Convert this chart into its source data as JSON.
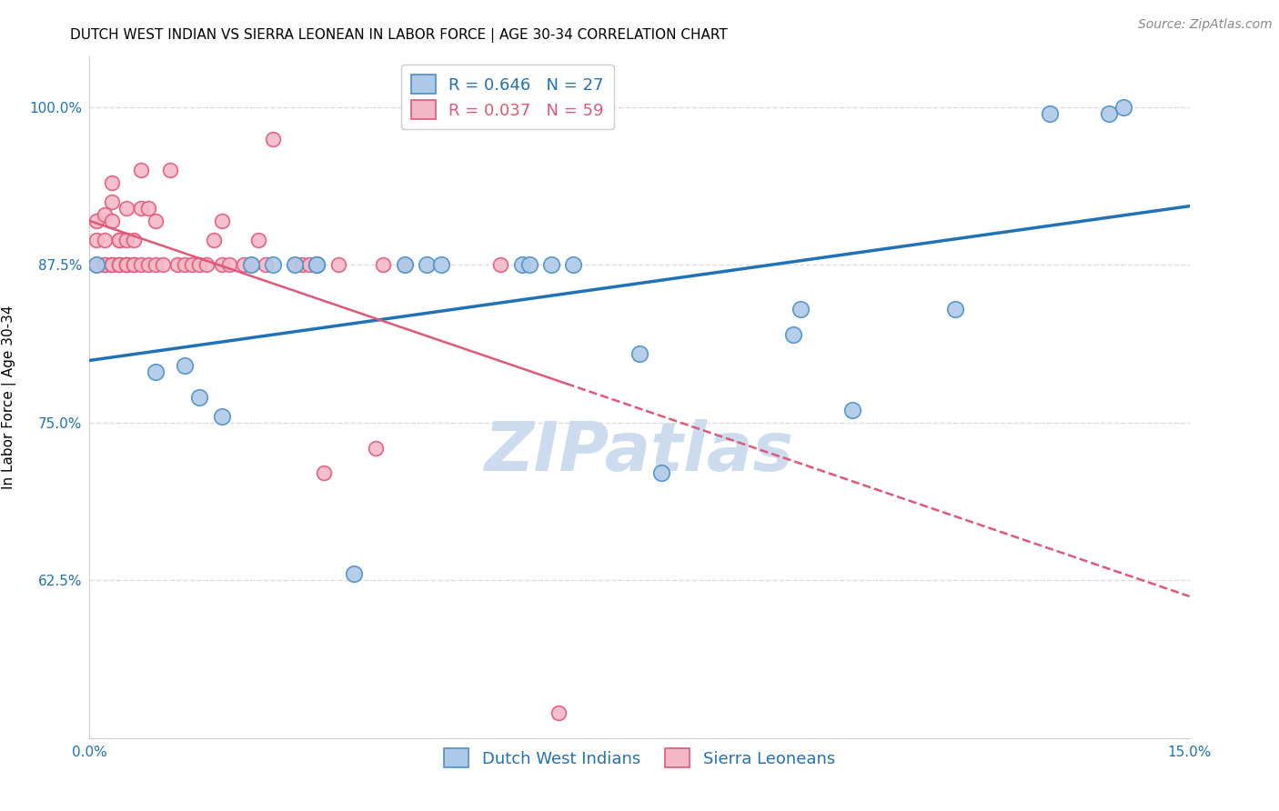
{
  "title": "DUTCH WEST INDIAN VS SIERRA LEONEAN IN LABOR FORCE | AGE 30-34 CORRELATION CHART",
  "source": "Source: ZipAtlas.com",
  "ylabel": "In Labor Force | Age 30-34",
  "xlim": [
    0.0,
    0.15
  ],
  "ylim": [
    0.5,
    1.04
  ],
  "xticks": [
    0.0,
    0.025,
    0.05,
    0.075,
    0.1,
    0.125,
    0.15
  ],
  "xticklabels": [
    "0.0%",
    "",
    "",
    "",
    "",
    "",
    "15.0%"
  ],
  "yticks": [
    0.625,
    0.75,
    0.875,
    1.0
  ],
  "yticklabels": [
    "62.5%",
    "75.0%",
    "87.5%",
    "100.0%"
  ],
  "grid_color": "#dddddd",
  "blue_color": "#aec9e8",
  "pink_color": "#f4b8c8",
  "blue_edge_color": "#4a90c4",
  "pink_edge_color": "#e05878",
  "blue_line_color": "#2171b5",
  "pink_line_color": "#e05878",
  "legend_blue_R": "R = 0.646",
  "legend_blue_N": "N = 27",
  "legend_pink_R": "R = 0.037",
  "legend_pink_N": "N = 59",
  "blue_x": [
    0.001,
    0.009,
    0.013,
    0.015,
    0.018,
    0.022,
    0.025,
    0.028,
    0.031,
    0.031,
    0.036,
    0.043,
    0.046,
    0.048,
    0.059,
    0.06,
    0.063,
    0.066,
    0.075,
    0.078,
    0.096,
    0.097,
    0.104,
    0.118,
    0.131,
    0.139,
    0.141
  ],
  "blue_y": [
    0.875,
    0.79,
    0.795,
    0.77,
    0.755,
    0.875,
    0.875,
    0.875,
    0.875,
    0.875,
    0.63,
    0.875,
    0.875,
    0.875,
    0.875,
    0.875,
    0.875,
    0.875,
    0.805,
    0.71,
    0.82,
    0.84,
    0.76,
    0.84,
    0.995,
    0.995,
    1.0
  ],
  "pink_x": [
    0.001,
    0.001,
    0.001,
    0.002,
    0.002,
    0.002,
    0.002,
    0.003,
    0.003,
    0.003,
    0.003,
    0.003,
    0.004,
    0.004,
    0.004,
    0.004,
    0.005,
    0.005,
    0.005,
    0.005,
    0.005,
    0.006,
    0.006,
    0.006,
    0.007,
    0.007,
    0.007,
    0.008,
    0.008,
    0.009,
    0.009,
    0.01,
    0.011,
    0.012,
    0.013,
    0.014,
    0.015,
    0.016,
    0.017,
    0.018,
    0.018,
    0.019,
    0.021,
    0.022,
    0.023,
    0.024,
    0.025,
    0.028,
    0.029,
    0.03,
    0.031,
    0.032,
    0.034,
    0.039,
    0.04,
    0.043,
    0.047,
    0.056,
    0.064
  ],
  "pink_y": [
    0.875,
    0.895,
    0.91,
    0.875,
    0.875,
    0.895,
    0.915,
    0.875,
    0.875,
    0.91,
    0.925,
    0.94,
    0.875,
    0.875,
    0.895,
    0.895,
    0.875,
    0.875,
    0.875,
    0.895,
    0.92,
    0.875,
    0.875,
    0.895,
    0.875,
    0.92,
    0.95,
    0.875,
    0.92,
    0.875,
    0.91,
    0.875,
    0.95,
    0.875,
    0.875,
    0.875,
    0.875,
    0.875,
    0.895,
    0.875,
    0.91,
    0.875,
    0.875,
    0.875,
    0.895,
    0.875,
    0.975,
    0.875,
    0.875,
    0.875,
    0.875,
    0.71,
    0.875,
    0.73,
    0.875,
    0.875,
    0.995,
    0.875,
    0.52
  ],
  "watermark": "ZIPatlas",
  "watermark_color": "#ccdcee",
  "title_fontsize": 11,
  "axis_label_fontsize": 11,
  "tick_fontsize": 11,
  "legend_fontsize": 13,
  "source_fontsize": 10
}
